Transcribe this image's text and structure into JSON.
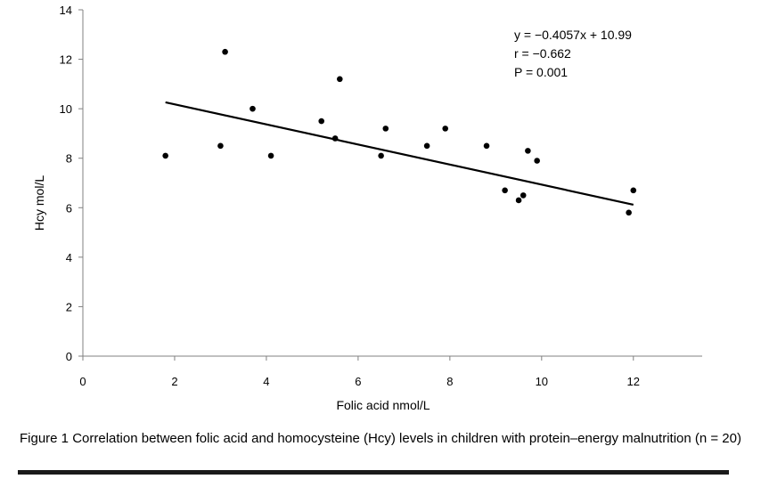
{
  "chart_data": {
    "type": "scatter",
    "title": "",
    "xlabel": "Folic acid nmol/L",
    "ylabel": "Hcy mol/L",
    "xlim": [
      0,
      13.5
    ],
    "ylim": [
      0,
      14
    ],
    "x_ticks": [
      0,
      2,
      4,
      6,
      8,
      10,
      12
    ],
    "y_ticks": [
      0,
      2,
      4,
      6,
      8,
      10,
      12,
      14
    ],
    "grid": false,
    "legend": "none",
    "points": [
      {
        "x": 1.8,
        "y": 8.1
      },
      {
        "x": 3.0,
        "y": 8.5
      },
      {
        "x": 3.1,
        "y": 12.3
      },
      {
        "x": 3.7,
        "y": 10.0
      },
      {
        "x": 4.1,
        "y": 8.1
      },
      {
        "x": 5.2,
        "y": 9.5
      },
      {
        "x": 5.5,
        "y": 8.8
      },
      {
        "x": 5.6,
        "y": 11.2
      },
      {
        "x": 6.5,
        "y": 8.1
      },
      {
        "x": 6.6,
        "y": 9.2
      },
      {
        "x": 7.5,
        "y": 8.5
      },
      {
        "x": 7.9,
        "y": 9.2
      },
      {
        "x": 8.8,
        "y": 8.5
      },
      {
        "x": 9.2,
        "y": 6.7
      },
      {
        "x": 9.5,
        "y": 6.3
      },
      {
        "x": 9.6,
        "y": 6.5
      },
      {
        "x": 9.7,
        "y": 8.3
      },
      {
        "x": 9.9,
        "y": 7.9
      },
      {
        "x": 11.9,
        "y": 5.8
      },
      {
        "x": 12.0,
        "y": 6.7
      }
    ],
    "trendline": {
      "slope": -0.4057,
      "intercept": 10.99,
      "x_from": 1.8,
      "x_to": 12.0
    },
    "annotations": [
      "y = −0.4057x + 10.99",
      "r = −0.662",
      "P = 0.001"
    ],
    "point_color": "#000000",
    "line_color": "#000000"
  },
  "caption": "Figure 1 Correlation between folic acid and homocysteine (Hcy) levels in children with protein–energy malnutrition (n = 20)"
}
